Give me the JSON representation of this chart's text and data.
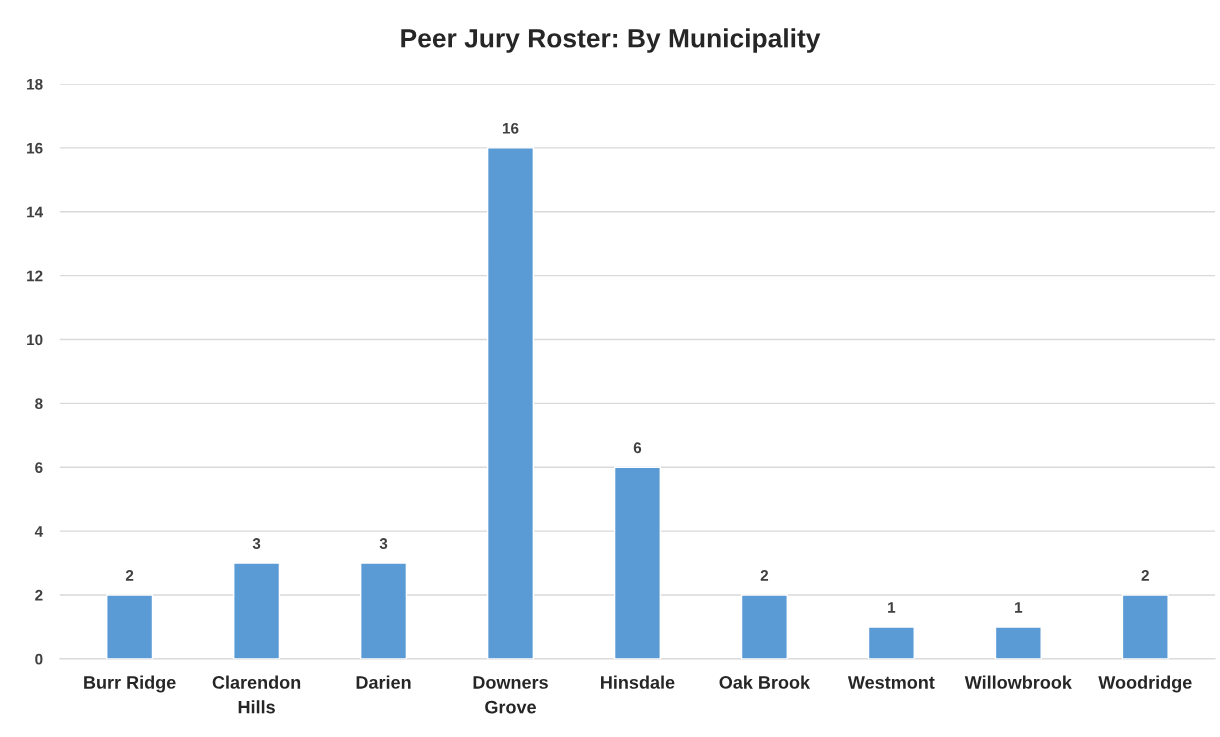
{
  "chart_data": {
    "type": "bar",
    "title": "Peer Jury Roster: By Municipality",
    "categories": [
      "Burr Ridge",
      "Clarendon\nHills",
      "Darien",
      "Downers\nGrove",
      "Hinsdale",
      "Oak Brook",
      "Westmont",
      "Willowbrook",
      "Woodridge"
    ],
    "values": [
      2,
      3,
      3,
      16,
      6,
      2,
      1,
      1,
      2
    ],
    "color": "#5b9bd5",
    "ylim": [
      0,
      18
    ],
    "yticks": [
      0,
      2,
      4,
      6,
      8,
      10,
      12,
      14,
      16,
      18
    ],
    "grid": "y",
    "data_labels": true,
    "legend": false
  }
}
